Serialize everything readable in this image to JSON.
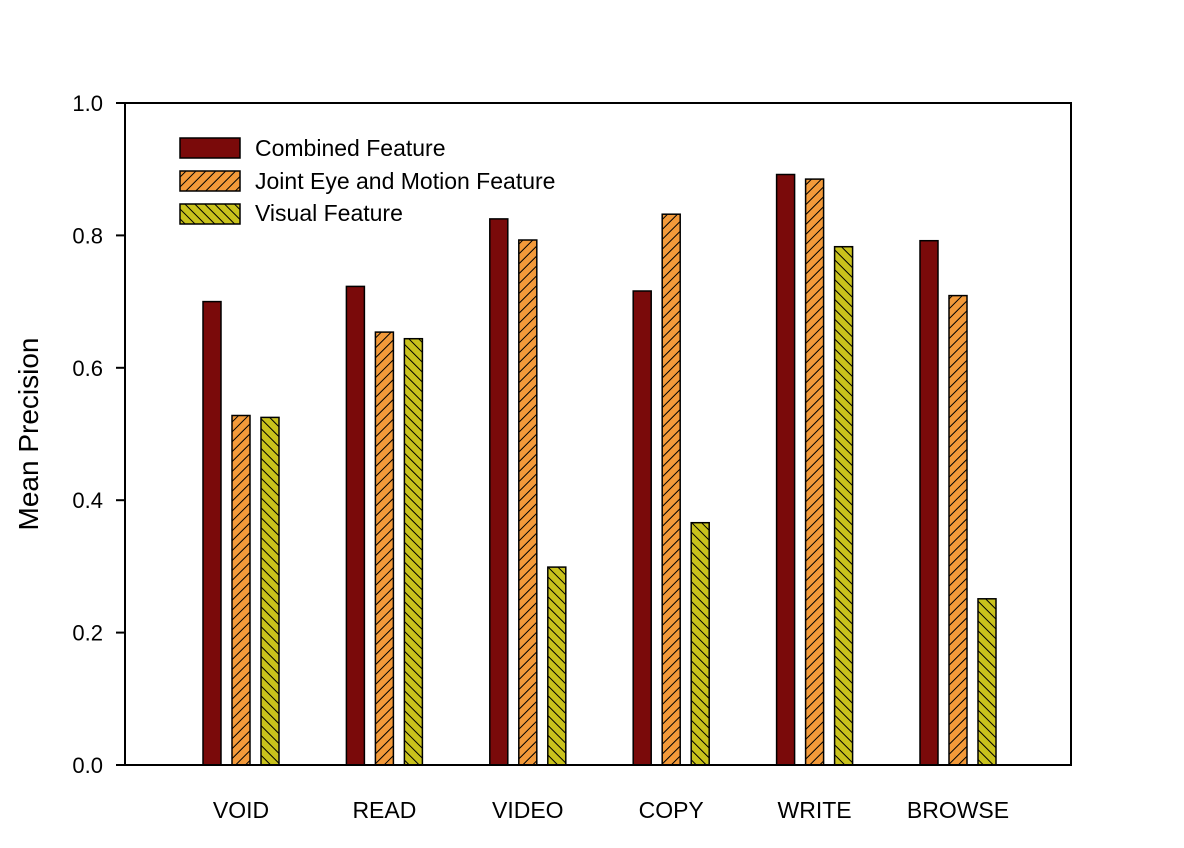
{
  "chart_data": {
    "type": "bar",
    "title": "",
    "xlabel": "",
    "ylabel": "Mean Precision",
    "ylim": [
      0,
      1.0
    ],
    "yticks": [
      "0.0",
      "0.2",
      "0.4",
      "0.6",
      "0.8",
      "1.0"
    ],
    "categories": [
      "VOID",
      "READ",
      "VIDEO",
      "COPY",
      "WRITE",
      "BROWSE"
    ],
    "grid": false,
    "legend_position": "top-left",
    "series": [
      {
        "name": "Combined Feature",
        "values": [
          0.7,
          0.723,
          0.825,
          0.716,
          0.892,
          0.792
        ],
        "color": "#7a0a0a",
        "pattern": "solid"
      },
      {
        "name": "Joint Eye and Motion Feature",
        "values": [
          0.528,
          0.654,
          0.793,
          0.832,
          0.885,
          0.709
        ],
        "color": "#f39a3a",
        "pattern": "hatch-forward"
      },
      {
        "name": "Visual Feature",
        "values": [
          0.525,
          0.644,
          0.299,
          0.366,
          0.783,
          0.251
        ],
        "color": "#c9c21c",
        "pattern": "hatch-backward"
      }
    ]
  }
}
